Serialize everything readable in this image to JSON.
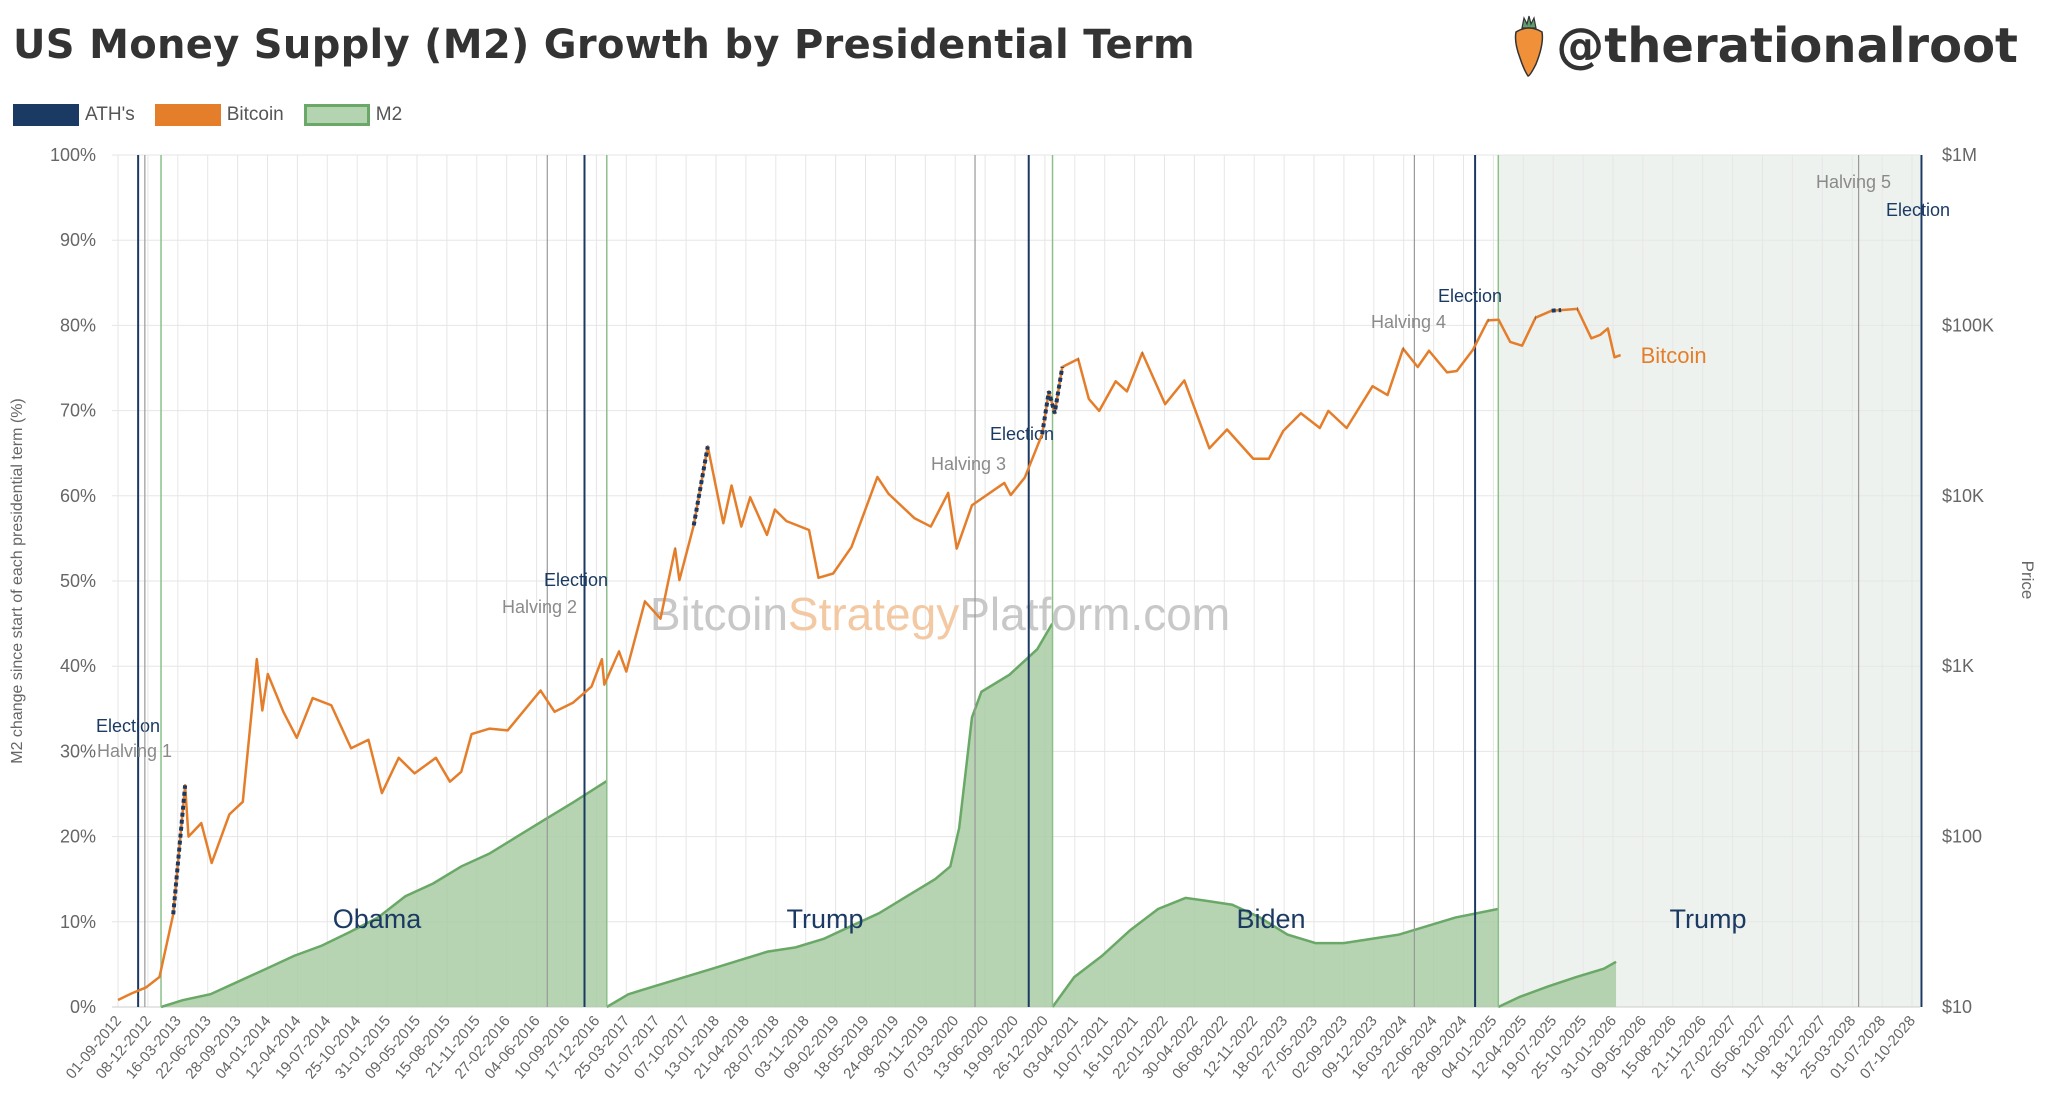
{
  "header": {
    "title": "US Money Supply (M2) Growth by Presidential Term",
    "brand": "@therationalroot"
  },
  "legend": [
    {
      "label": "ATH's",
      "color": "#1b3a63"
    },
    {
      "label": "Bitcoin",
      "color": "#e57e2b"
    },
    {
      "label": "M2",
      "color": "#b4d3b0"
    }
  ],
  "chart_data": {
    "type": "area",
    "title": "US Money Supply (M2) Growth by Presidential Term",
    "ylabel": "M2 change since start of each presidential term (%)",
    "y2label": "Price",
    "watermark": [
      "Bitcoin",
      "Strategy",
      "Platform.com"
    ],
    "ylim": [
      0,
      100
    ],
    "y2lim": [
      10,
      1000000
    ],
    "y2scale": "log",
    "yticks": [
      "0%",
      "10%",
      "20%",
      "30%",
      "40%",
      "50%",
      "60%",
      "70%",
      "80%",
      "90%",
      "100%"
    ],
    "y2ticks": [
      "$10",
      "$100",
      "$1K",
      "$10K",
      "$100K",
      "$1M"
    ],
    "xticks": [
      "01-09-2012",
      "08-12-2012",
      "16-03-2013",
      "22-06-2013",
      "28-09-2013",
      "04-01-2014",
      "12-04-2014",
      "19-07-2014",
      "25-10-2014",
      "31-01-2015",
      "09-05-2015",
      "15-08-2015",
      "21-11-2015",
      "27-02-2016",
      "04-06-2016",
      "10-09-2016",
      "17-12-2016",
      "25-03-2017",
      "01-07-2017",
      "07-10-2017",
      "13-01-2018",
      "21-04-2018",
      "28-07-2018",
      "03-11-2018",
      "09-02-2019",
      "18-05-2019",
      "24-08-2019",
      "30-11-2019",
      "07-03-2020",
      "13-06-2020",
      "19-09-2020",
      "26-12-2020",
      "03-04-2021",
      "10-07-2021",
      "16-10-2021",
      "22-01-2022",
      "30-04-2022",
      "06-08-2022",
      "12-11-2022",
      "18-02-2023",
      "27-05-2023",
      "02-09-2023",
      "09-12-2023",
      "16-03-2024",
      "22-06-2024",
      "28-09-2024",
      "04-01-2025",
      "12-04-2025",
      "19-07-2025",
      "25-10-2025",
      "31-01-2026",
      "09-05-2026",
      "15-08-2026",
      "21-11-2026",
      "27-02-2027",
      "05-06-2027",
      "11-09-2027",
      "18-12-2027",
      "25-03-2028",
      "01-07-2028",
      "07-10-2028"
    ],
    "terms": [
      {
        "name": "Obama",
        "start": "2013-01-20",
        "m2": [
          [
            "2013-01-20",
            0
          ],
          [
            "2013-04-01",
            0.8
          ],
          [
            "2013-07-01",
            1.5
          ],
          [
            "2013-10-01",
            3
          ],
          [
            "2014-01-01",
            4.5
          ],
          [
            "2014-04-01",
            6
          ],
          [
            "2014-07-01",
            7.2
          ],
          [
            "2014-10-01",
            8.8
          ],
          [
            "2015-01-01",
            10.5
          ],
          [
            "2015-04-01",
            13
          ],
          [
            "2015-07-01",
            14.5
          ],
          [
            "2015-10-01",
            16.5
          ],
          [
            "2016-01-01",
            18
          ],
          [
            "2016-04-01",
            20
          ],
          [
            "2016-07-01",
            22
          ],
          [
            "2016-10-01",
            24
          ],
          [
            "2017-01-19",
            26.5
          ]
        ]
      },
      {
        "name": "Trump",
        "start": "2017-01-20",
        "m2": [
          [
            "2017-01-20",
            0
          ],
          [
            "2017-04-01",
            1.5
          ],
          [
            "2017-07-01",
            2.5
          ],
          [
            "2017-10-01",
            3.5
          ],
          [
            "2018-01-01",
            4.5
          ],
          [
            "2018-04-01",
            5.5
          ],
          [
            "2018-07-01",
            6.5
          ],
          [
            "2018-10-01",
            7
          ],
          [
            "2019-01-01",
            8
          ],
          [
            "2019-04-01",
            9.5
          ],
          [
            "2019-07-01",
            11
          ],
          [
            "2019-10-01",
            13
          ],
          [
            "2020-01-01",
            15
          ],
          [
            "2020-02-20",
            16.5
          ],
          [
            "2020-03-20",
            21
          ],
          [
            "2020-05-01",
            34
          ],
          [
            "2020-06-01",
            37
          ],
          [
            "2020-09-01",
            39
          ],
          [
            "2020-12-01",
            42
          ],
          [
            "2021-01-19",
            45
          ]
        ]
      },
      {
        "name": "Biden",
        "start": "2021-01-20",
        "m2": [
          [
            "2021-01-20",
            0
          ],
          [
            "2021-04-01",
            3.5
          ],
          [
            "2021-07-01",
            6
          ],
          [
            "2021-10-01",
            9
          ],
          [
            "2022-01-01",
            11.5
          ],
          [
            "2022-04-01",
            12.8
          ],
          [
            "2022-06-01",
            12.5
          ],
          [
            "2022-09-01",
            12
          ],
          [
            "2022-12-01",
            10.5
          ],
          [
            "2023-03-01",
            8.5
          ],
          [
            "2023-06-01",
            7.5
          ],
          [
            "2023-09-01",
            7.5
          ],
          [
            "2023-12-01",
            8
          ],
          [
            "2024-03-01",
            8.5
          ],
          [
            "2024-06-01",
            9.5
          ],
          [
            "2024-09-01",
            10.5
          ],
          [
            "2025-01-19",
            11.5
          ]
        ]
      },
      {
        "name": "Trump",
        "start": "2025-01-20",
        "m2": [
          [
            "2025-01-20",
            0
          ],
          [
            "2025-04-01",
            1.2
          ],
          [
            "2025-07-01",
            2.4
          ],
          [
            "2025-10-01",
            3.5
          ],
          [
            "2026-01-01",
            4.5
          ],
          [
            "2026-02-10",
            5.3
          ]
        ]
      }
    ],
    "bitcoin": {
      "label": "Bitcoin",
      "prices": [
        [
          "2012-09-01",
          11
        ],
        [
          "2012-10-15",
          12
        ],
        [
          "2012-12-01",
          13
        ],
        [
          "2013-01-15",
          15
        ],
        [
          "2013-03-01",
          35
        ],
        [
          "2013-04-09",
          200
        ],
        [
          "2013-04-20",
          100
        ],
        [
          "2013-06-01",
          120
        ],
        [
          "2013-07-05",
          70
        ],
        [
          "2013-09-01",
          135
        ],
        [
          "2013-10-15",
          160
        ],
        [
          "2013-11-30",
          1100
        ],
        [
          "2013-12-18",
          550
        ],
        [
          "2014-01-05",
          900
        ],
        [
          "2014-02-25",
          540
        ],
        [
          "2014-04-10",
          380
        ],
        [
          "2014-06-01",
          650
        ],
        [
          "2014-08-01",
          590
        ],
        [
          "2014-10-05",
          330
        ],
        [
          "2014-12-01",
          370
        ],
        [
          "2015-01-14",
          180
        ],
        [
          "2015-03-10",
          290
        ],
        [
          "2015-05-01",
          235
        ],
        [
          "2015-07-10",
          290
        ],
        [
          "2015-08-25",
          210
        ],
        [
          "2015-10-01",
          240
        ],
        [
          "2015-11-04",
          400
        ],
        [
          "2016-01-01",
          430
        ],
        [
          "2016-03-01",
          420
        ],
        [
          "2016-06-17",
          720
        ],
        [
          "2016-08-02",
          540
        ],
        [
          "2016-10-01",
          610
        ],
        [
          "2016-12-01",
          760
        ],
        [
          "2017-01-04",
          1100
        ],
        [
          "2017-01-12",
          780
        ],
        [
          "2017-03-01",
          1220
        ],
        [
          "2017-03-25",
          930
        ],
        [
          "2017-05-25",
          2400
        ],
        [
          "2017-07-15",
          1900
        ],
        [
          "2017-09-01",
          4900
        ],
        [
          "2017-09-15",
          3200
        ],
        [
          "2017-11-01",
          6700
        ],
        [
          "2017-12-17",
          19500
        ],
        [
          "2018-02-06",
          6900
        ],
        [
          "2018-03-05",
          11500
        ],
        [
          "2018-04-06",
          6600
        ],
        [
          "2018-05-05",
          9800
        ],
        [
          "2018-06-29",
          5900
        ],
        [
          "2018-07-25",
          8300
        ],
        [
          "2018-09-01",
          7100
        ],
        [
          "2018-11-14",
          6300
        ],
        [
          "2018-12-15",
          3300
        ],
        [
          "2019-02-01",
          3500
        ],
        [
          "2019-04-02",
          5000
        ],
        [
          "2019-06-26",
          12900
        ],
        [
          "2019-08-01",
          10300
        ],
        [
          "2019-10-25",
          7400
        ],
        [
          "2019-12-18",
          6600
        ],
        [
          "2020-02-13",
          10400
        ],
        [
          "2020-03-12",
          4900
        ],
        [
          "2020-05-01",
          8800
        ],
        [
          "2020-08-15",
          11900
        ],
        [
          "2020-09-05",
          10100
        ],
        [
          "2020-10-21",
          12800
        ],
        [
          "2020-12-17",
          23000
        ],
        [
          "2021-01-08",
          41000
        ],
        [
          "2021-01-27",
          30500
        ],
        [
          "2021-02-21",
          57000
        ],
        [
          "2021-04-14",
          63500
        ],
        [
          "2021-05-19",
          37000
        ],
        [
          "2021-06-22",
          31500
        ],
        [
          "2021-08-15",
          47000
        ],
        [
          "2021-09-21",
          41000
        ],
        [
          "2021-11-10",
          69000
        ],
        [
          "2022-01-24",
          34500
        ],
        [
          "2022-03-28",
          47500
        ],
        [
          "2022-06-18",
          19000
        ],
        [
          "2022-08-15",
          24500
        ],
        [
          "2022-11-09",
          16500
        ],
        [
          "2022-12-30",
          16500
        ],
        [
          "2023-02-15",
          24000
        ],
        [
          "2023-04-14",
          30500
        ],
        [
          "2023-06-15",
          25000
        ],
        [
          "2023-07-13",
          31500
        ],
        [
          "2023-09-11",
          25000
        ],
        [
          "2023-12-05",
          44000
        ],
        [
          "2024-01-23",
          39000
        ],
        [
          "2024-03-14",
          73000
        ],
        [
          "2024-05-01",
          57000
        ],
        [
          "2024-06-07",
          71000
        ],
        [
          "2024-08-05",
          53000
        ],
        [
          "2024-09-06",
          54000
        ],
        [
          "2024-10-29",
          72000
        ],
        [
          "2024-12-17",
          107000
        ],
        [
          "2025-01-21",
          108000
        ],
        [
          "2025-02-28",
          80000
        ],
        [
          "2025-04-08",
          76000
        ],
        [
          "2025-05-22",
          111000
        ],
        [
          "2025-07-14",
          122000
        ],
        [
          "2025-08-14",
          123000
        ],
        [
          "2025-10-06",
          125000
        ],
        [
          "2025-11-21",
          84000
        ],
        [
          "2025-12-20",
          88000
        ],
        [
          "2026-01-14",
          96000
        ],
        [
          "2026-02-05",
          65000
        ],
        [
          "2026-02-25",
          67000
        ]
      ]
    },
    "ath_ranges": [
      [
        "2013-02-20",
        "2013-04-09"
      ],
      [
        "2013-10-25",
        "2013-11-30"
      ],
      [
        "2017-02-20",
        "2017-03-05"
      ],
      [
        "2017-04-25",
        "2017-06-10"
      ],
      [
        "2017-07-25",
        "2017-09-01"
      ],
      [
        "2017-10-10",
        "2017-12-17"
      ],
      [
        "2020-12-17",
        "2021-02-21"
      ],
      [
        "2021-04-01",
        "2021-04-14"
      ],
      [
        "2021-10-15",
        "2021-11-10"
      ],
      [
        "2024-03-05",
        "2024-03-14"
      ],
      [
        "2024-11-10",
        "2024-12-17"
      ],
      [
        "2025-05-20",
        "2025-05-25"
      ],
      [
        "2025-07-10",
        "2025-08-14"
      ],
      [
        "2025-10-01",
        "2025-10-06"
      ]
    ],
    "events": [
      {
        "type": "election",
        "label": "Election",
        "date": "2012-11-06"
      },
      {
        "type": "halving",
        "label": "Halving 1",
        "date": "2012-11-28"
      },
      {
        "type": "halving",
        "label": "Halving 2",
        "date": "2016-07-09"
      },
      {
        "type": "election",
        "label": "Election",
        "date": "2016-11-08"
      },
      {
        "type": "halving",
        "label": "Halving 3",
        "date": "2020-05-11"
      },
      {
        "type": "election",
        "label": "Election",
        "date": "2020-11-03"
      },
      {
        "type": "halving",
        "label": "Halving 4",
        "date": "2024-04-20"
      },
      {
        "type": "election",
        "label": "Election",
        "date": "2024-11-05"
      },
      {
        "type": "halving",
        "label": "Halving 5",
        "date": "2028-04-15"
      },
      {
        "type": "election",
        "label": "Election",
        "date": "2028-11-07"
      }
    ],
    "future_from": "2025-01-20",
    "colors": {
      "election": "#1b3a63",
      "halving": "#999999",
      "term": "#8cc08a",
      "bitcoin": "#e57e2b",
      "ath": "#1b3a63",
      "m2_fill": "#a9cca5",
      "m2_line": "#6aa867",
      "future": "#eef2ee"
    }
  }
}
